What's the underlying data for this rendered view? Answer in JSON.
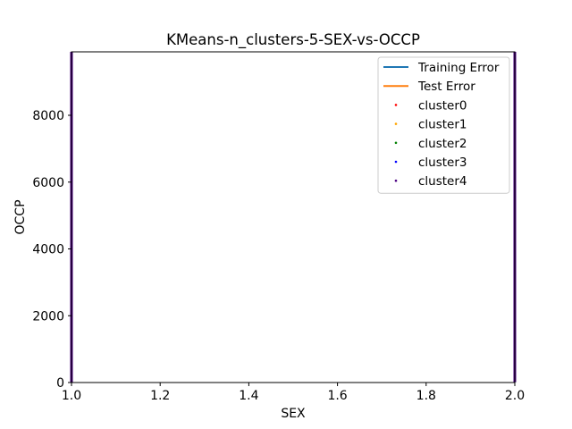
{
  "chart_data": {
    "type": "scatter",
    "title": "KMeans-n_clusters-5-SEX-vs-OCCP",
    "xlabel": "SEX",
    "ylabel": "OCCP",
    "xlim": [
      1.0,
      2.0
    ],
    "ylim": [
      0,
      9900
    ],
    "xticks": [
      1.0,
      1.2,
      1.4,
      1.6,
      1.8,
      2.0
    ],
    "xtick_labels": [
      "1.0",
      "1.2",
      "1.4",
      "1.6",
      "1.8",
      "2.0"
    ],
    "yticks": [
      0,
      2000,
      4000,
      6000,
      8000
    ],
    "ytick_labels": [
      "0",
      "2000",
      "4000",
      "6000",
      "8000"
    ],
    "grid": false,
    "legend_position": "top-right",
    "lines": [
      {
        "name": "Training Error",
        "color": "#1f77b4",
        "x": [],
        "y": []
      },
      {
        "name": "Test Error",
        "color": "#ff7f0e",
        "x": [],
        "y": []
      }
    ],
    "series": [
      {
        "name": "cluster0",
        "color": "#ff0000",
        "x": [
          1,
          1,
          2,
          2
        ],
        "y": [
          2500,
          9900,
          2500,
          9900
        ]
      },
      {
        "name": "cluster1",
        "color": "#ffa500",
        "x": [
          1,
          2
        ],
        "y": [
          2300,
          2300
        ]
      },
      {
        "name": "cluster2",
        "color": "#008000",
        "x": [
          1,
          1,
          2,
          2
        ],
        "y": [
          10,
          2200,
          10,
          2200
        ]
      },
      {
        "name": "cluster3",
        "color": "#0000ff",
        "x": [
          1,
          1,
          2,
          2
        ],
        "y": [
          5800,
          9900,
          5800,
          9900
        ]
      },
      {
        "name": "cluster4",
        "color": "#4b0082",
        "x": [
          1,
          1,
          2,
          2
        ],
        "y": [
          10,
          9900,
          10,
          9900
        ]
      }
    ]
  }
}
